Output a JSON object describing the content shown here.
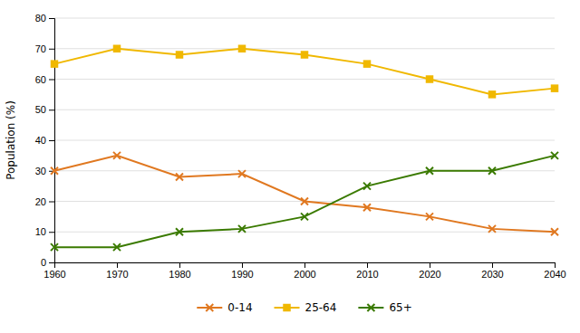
{
  "chart_data": {
    "type": "line",
    "x": [
      1960,
      1970,
      1980,
      1990,
      2000,
      2010,
      2020,
      2030,
      2040
    ],
    "series": [
      {
        "name": "0-14",
        "color": "#e07820",
        "marker": "x",
        "values": [
          30,
          35,
          28,
          29,
          20,
          18,
          15,
          11,
          10
        ]
      },
      {
        "name": "25-64",
        "color": "#f0b800",
        "marker": "square",
        "values": [
          65,
          70,
          68,
          70,
          68,
          65,
          60,
          55,
          57
        ]
      },
      {
        "name": "65+",
        "color": "#3a7a00",
        "marker": "x",
        "values": [
          5,
          5,
          10,
          11,
          15,
          25,
          30,
          30,
          35
        ]
      }
    ],
    "ylabel": "Population (%)",
    "xlim": [
      1960,
      2040
    ],
    "xticks": [
      1960,
      1970,
      1980,
      1990,
      2000,
      2010,
      2020,
      2030,
      2040
    ],
    "ylim": [
      0,
      80
    ],
    "yticks": [
      0,
      10,
      20,
      30,
      40,
      50,
      60,
      70,
      80
    ],
    "grid": true,
    "legend": "bottom"
  }
}
